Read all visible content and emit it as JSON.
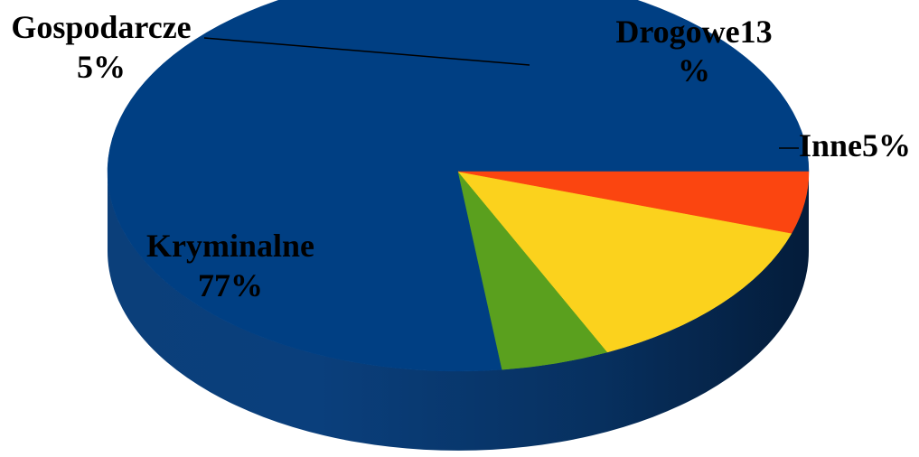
{
  "chart_data": {
    "type": "pie",
    "style": "3d",
    "title": "",
    "slices": [
      {
        "name": "Kryminalne",
        "value": 77,
        "label_text": [
          "Kryminalne",
          "77%"
        ],
        "color": "#003f83"
      },
      {
        "name": "Inne",
        "value": 5,
        "label_text": [
          "Inne5%"
        ],
        "color": "#5aa01e"
      },
      {
        "name": "Drogowe",
        "value": 13,
        "label_text": [
          "Drogowe13",
          "%"
        ],
        "color": "#fbd21d"
      },
      {
        "name": "Gospodarcze",
        "value": 5,
        "label_text": [
          "Gospodarcze",
          "5%"
        ],
        "color": "#fb4510"
      }
    ],
    "legend": "none"
  }
}
